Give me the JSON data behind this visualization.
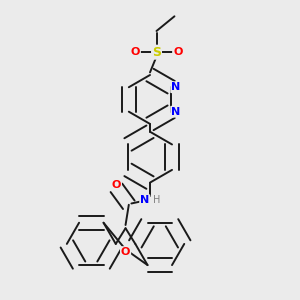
{
  "background_color": "#ebebeb",
  "bond_color": "#1a1a1a",
  "atom_colors": {
    "N": "#0000ff",
    "O": "#ff0000",
    "S": "#cccc00",
    "H": "#808080",
    "C": "#1a1a1a"
  },
  "figsize": [
    3.0,
    3.0
  ],
  "dpi": 100
}
